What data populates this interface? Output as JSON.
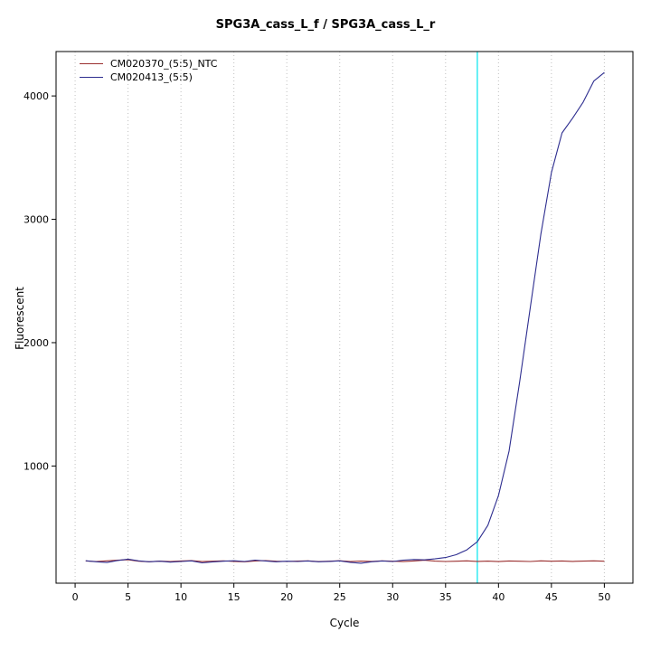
{
  "chart_data": {
    "type": "line",
    "title": "SPG3A_cass_L_f / SPG3A_cass_L_r",
    "xlabel": "Cycle",
    "ylabel": "Fluorescent",
    "xlim": [
      -1.8,
      52.7
    ],
    "ylim": [
      50,
      4360
    ],
    "x_ticks": [
      0,
      5,
      10,
      15,
      20,
      25,
      30,
      35,
      40,
      45,
      50
    ],
    "y_ticks": [
      1000,
      2000,
      3000,
      4000
    ],
    "grid": "vertical-dotted",
    "grid_color": "#c0c0c0",
    "legend_position": "top-left",
    "threshold_line": {
      "x": 38,
      "color": "#00e5ee"
    },
    "x": [
      1,
      2,
      3,
      4,
      5,
      6,
      7,
      8,
      9,
      10,
      11,
      12,
      13,
      14,
      15,
      16,
      17,
      18,
      19,
      20,
      21,
      22,
      23,
      24,
      25,
      26,
      27,
      28,
      29,
      30,
      31,
      32,
      33,
      34,
      35,
      36,
      37,
      38,
      39,
      40,
      41,
      42,
      43,
      44,
      45,
      46,
      47,
      48,
      49,
      50
    ],
    "series": [
      {
        "name": "CM020370_(5:5)_NTC",
        "color": "#9b3030",
        "values": [
          230,
          226,
          231,
          236,
          240,
          228,
          224,
          229,
          226,
          230,
          233,
          225,
          228,
          231,
          227,
          224,
          230,
          233,
          228,
          226,
          229,
          231,
          225,
          228,
          232,
          226,
          229,
          227,
          231,
          228,
          225,
          230,
          236,
          229,
          226,
          228,
          231,
          227,
          229,
          225,
          230,
          228,
          226,
          231,
          228,
          230,
          227,
          229,
          231,
          228
        ]
      },
      {
        "name": "CM020413_(5:5)",
        "color": "#2d2d8f",
        "values": [
          232,
          224,
          218,
          234,
          245,
          231,
          224,
          228,
          221,
          226,
          231,
          215,
          223,
          228,
          232,
          226,
          237,
          230,
          224,
          228,
          226,
          230,
          224,
          227,
          231,
          219,
          212,
          224,
          230,
          226,
          237,
          242,
          239,
          247,
          258,
          281,
          320,
          386,
          520,
          760,
          1120,
          1680,
          2280,
          2880,
          3380,
          3700,
          3820,
          3950,
          4120,
          4190
        ]
      }
    ]
  }
}
